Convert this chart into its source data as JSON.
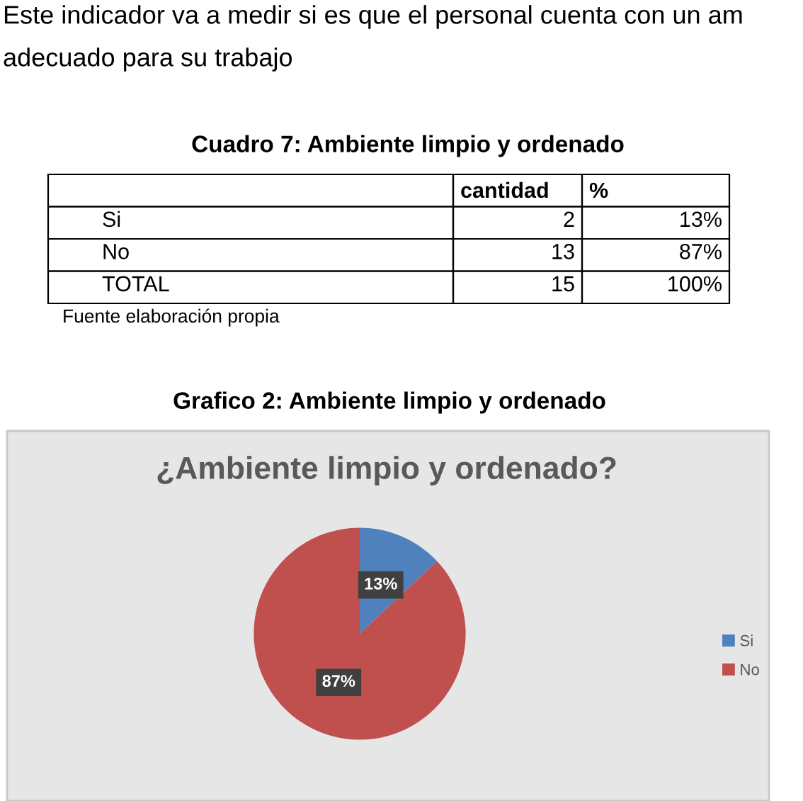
{
  "chart_data": [
    {
      "type": "other",
      "title": "Cuadro 7: Ambiente limpio y ordenado",
      "annotations": [
        "Este indicador va a medir si es que el personal cuenta con un am",
        "adecuado para su trabajo",
        "cantidad",
        "%",
        "Si",
        "2",
        "13%",
        "No",
        "13",
        "87%",
        "TOTAL",
        "15",
        "100%",
        "Fuente elaboración propia"
      ]
    },
    {
      "type": "pie",
      "title": "¿Ambiente limpio y ordenado?",
      "annotations": [
        "Grafico 2: Ambiente limpio y ordenado"
      ],
      "categories": [
        "Si",
        "No"
      ],
      "values": [
        13,
        87
      ],
      "colors": [
        "#4f81bd",
        "#c0504d"
      ],
      "value_labels": [
        "13%",
        "87%"
      ],
      "legend": "right"
    }
  ]
}
